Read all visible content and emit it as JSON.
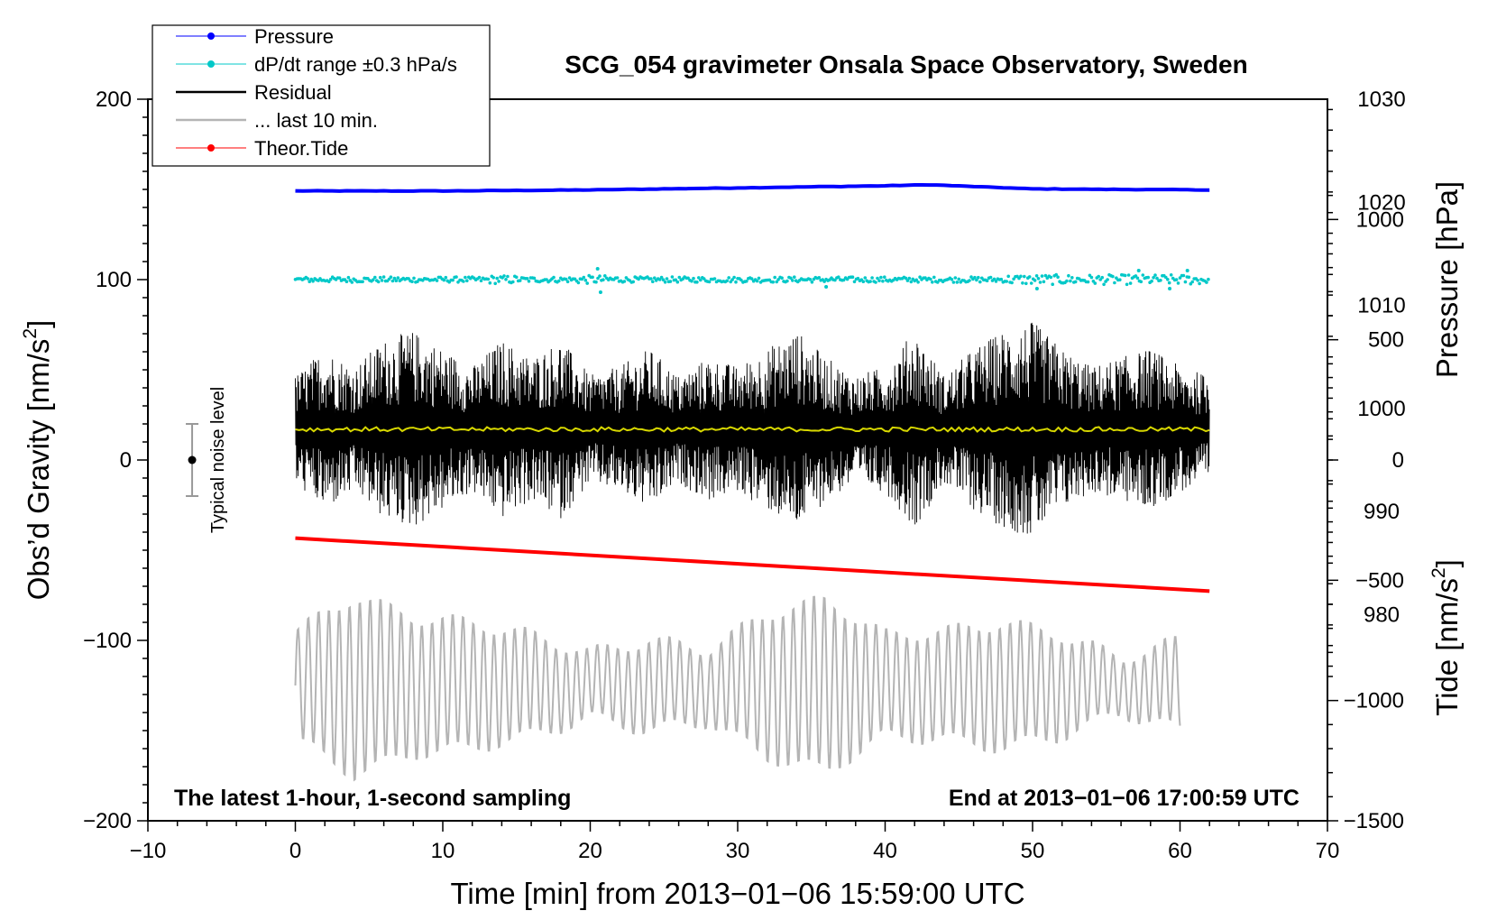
{
  "chart_data": {
    "type": "line",
    "title": "SCG_054 gravimeter Onsala Space Observatory, Sweden",
    "xlabel": "Time [min] from 2013−01−06 15:59:00 UTC",
    "ylabel_left": "Obs’d Gravity [nm/s",
    "ylabel_left_sup": "2",
    "ylabel_left_end": "]",
    "ylabel_right_pressure": "Pressure [hPa]",
    "ylabel_right_tide": "Tide [nm/s",
    "ylabel_right_tide_sup": "2",
    "ylabel_right_tide_end": "]",
    "xlim": [
      -10,
      70
    ],
    "ylim_left": [
      -200,
      200
    ],
    "ylim_pressure": [
      960,
      1030
    ],
    "ylim_tide": [
      -1500,
      1500
    ],
    "x_ticks": [
      -10,
      0,
      10,
      20,
      30,
      40,
      50,
      60,
      70
    ],
    "x_tick_labels": [
      "−10",
      "0",
      "10",
      "20",
      "30",
      "40",
      "50",
      "60",
      "70"
    ],
    "y_left_ticks": [
      -200,
      -100,
      0,
      100,
      200
    ],
    "y_left_tick_labels": [
      "−200",
      "−100",
      "0",
      "100",
      "200"
    ],
    "y_pressure_ticks": [
      980,
      990,
      1000,
      1010,
      1020,
      1030
    ],
    "y_pressure_tick_labels": [
      "980",
      "990",
      "1000",
      "1010",
      "1020",
      "1030"
    ],
    "y_tide_ticks": [
      -1500,
      -1000,
      -500,
      0,
      500,
      1000
    ],
    "y_tide_tick_labels": [
      "−1500",
      "−1000",
      "−500",
      "0",
      "500",
      "1000"
    ],
    "annotation_left": "The latest 1-hour, 1-second sampling",
    "annotation_right": "End at 2013−01−06 17:00:59 UTC",
    "noise_bar": {
      "label": "Typical noise level",
      "x": -7,
      "y_center": 0,
      "half_range": 20
    },
    "legend": [
      {
        "label": "Pressure",
        "color": "#0000ff",
        "marker": true
      },
      {
        "label": "dP/dt range ±0.3 hPa/s",
        "color": "#00c8c8",
        "marker": true
      },
      {
        "label": "Residual",
        "color": "#000000",
        "marker": false
      },
      {
        "label": "... last 10 min.",
        "color": "#b4b4b4",
        "marker": false
      },
      {
        "label": "Theor.Tide",
        "color": "#ff0000",
        "marker": true
      }
    ],
    "series": [
      {
        "name": "Pressure",
        "axis": "pressure",
        "color": "#0000ff",
        "x": [
          0,
          10,
          20,
          30,
          40,
          43,
          50,
          62
        ],
        "y": [
          1021.1,
          1021.1,
          1021.2,
          1021.4,
          1021.6,
          1021.7,
          1021.3,
          1021.2
        ]
      },
      {
        "name": "dP/dt range",
        "axis": "left",
        "color": "#00c8c8",
        "center": 100,
        "spread": 3,
        "outliers": [
          [
            20.5,
            106
          ],
          [
            20.7,
            93
          ],
          [
            36,
            96
          ],
          [
            50.3,
            95
          ],
          [
            57.2,
            105
          ],
          [
            59.3,
            95
          ],
          [
            60.5,
            105
          ]
        ]
      },
      {
        "name": "Residual",
        "axis": "left",
        "color": "#000000",
        "x_range": [
          0,
          62
        ],
        "center": 17,
        "envelope_x": [
          0,
          2,
          4,
          6,
          8,
          10,
          12,
          14,
          16,
          18,
          20,
          22,
          24,
          26,
          28,
          30,
          32,
          34,
          36,
          38,
          40,
          42,
          44,
          46,
          48,
          50,
          52,
          54,
          56,
          58,
          60,
          62
        ],
        "envelope_y": [
          30,
          45,
          35,
          50,
          55,
          45,
          35,
          50,
          40,
          50,
          30,
          35,
          45,
          30,
          40,
          35,
          45,
          55,
          40,
          30,
          35,
          55,
          30,
          45,
          55,
          60,
          45,
          35,
          40,
          45,
          35,
          30
        ]
      },
      {
        "name": "Residual smoothed",
        "axis": "left",
        "color": "#d7d700",
        "x": [
          0,
          62
        ],
        "y": [
          17,
          17
        ]
      },
      {
        "name": "... last 10 min.",
        "axis": "left",
        "color": "#b4b4b4",
        "x_range": [
          0,
          60
        ],
        "center": -125,
        "envelope_x": [
          0,
          4,
          8,
          12,
          16,
          20,
          24,
          28,
          32,
          36,
          40,
          44,
          48,
          52,
          56,
          60
        ],
        "envelope_y": [
          30,
          50,
          38,
          35,
          28,
          18,
          25,
          20,
          40,
          48,
          28,
          30,
          35,
          28,
          15,
          25
        ]
      },
      {
        "name": "Theor.Tide",
        "axis": "tide",
        "color": "#ff0000",
        "x": [
          0,
          62
        ],
        "y": [
          -325,
          -545
        ]
      }
    ]
  }
}
